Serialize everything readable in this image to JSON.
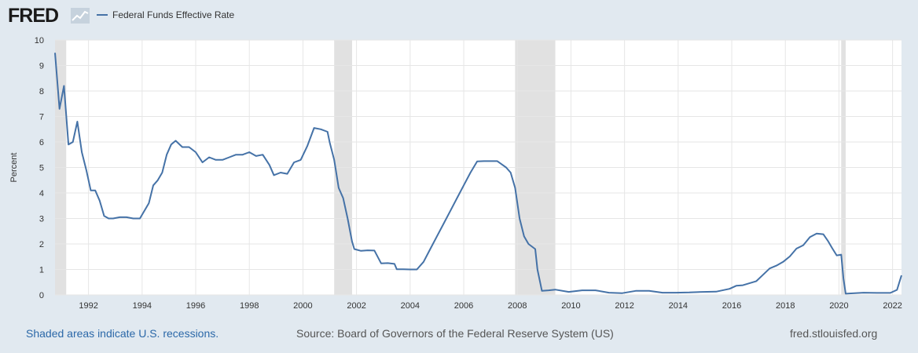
{
  "header": {
    "logo_text": "FRED",
    "legend_label": "Federal Funds Effective Rate"
  },
  "footer": {
    "recession_note": "Shaded areas indicate U.S. recessions.",
    "source": "Source: Board of Governors of the Federal Reserve System (US)",
    "site": "fred.stlouisfed.org"
  },
  "colors": {
    "background": "#e1e9f0",
    "plot_background": "#ffffff",
    "series_line": "#4572a7",
    "recession_shade": "#e1e1e1",
    "gridline": "#e6e6e6",
    "recession_note_text": "#2b68a8"
  },
  "icons": {
    "logo_icon": "line-chart-icon"
  },
  "chart_data": {
    "type": "line",
    "xlabel": "",
    "ylabel": "Percent",
    "ylim": [
      0,
      10
    ],
    "xlim": [
      "1990-10",
      "2022-05"
    ],
    "yticks": [
      "0",
      "1",
      "2",
      "3",
      "4",
      "5",
      "6",
      "7",
      "8",
      "9",
      "10"
    ],
    "xticks": [
      "1992",
      "1994",
      "1996",
      "1998",
      "2000",
      "2002",
      "2004",
      "2006",
      "2008",
      "2010",
      "2012",
      "2014",
      "2016",
      "2018",
      "2020",
      "2022"
    ],
    "grid": true,
    "legend": "top-left",
    "recessions": [
      [
        "1990-10",
        "1991-03"
      ],
      [
        "2001-03",
        "2001-11"
      ],
      [
        "2007-12",
        "2009-06"
      ],
      [
        "2020-02",
        "2020-04"
      ]
    ],
    "series": [
      {
        "name": "Federal Funds Effective Rate",
        "x": [
          "1990-10",
          "1990-12",
          "1991-02",
          "1991-04",
          "1991-06",
          "1991-08",
          "1991-10",
          "1991-12",
          "1992-02",
          "1992-04",
          "1992-06",
          "1992-08",
          "1992-10",
          "1992-12",
          "1993-03",
          "1993-06",
          "1993-09",
          "1993-12",
          "1994-02",
          "1994-04",
          "1994-06",
          "1994-08",
          "1994-10",
          "1994-12",
          "1995-02",
          "1995-04",
          "1995-07",
          "1995-10",
          "1996-01",
          "1996-04",
          "1996-07",
          "1996-10",
          "1997-01",
          "1997-04",
          "1997-07",
          "1997-10",
          "1998-01",
          "1998-04",
          "1998-07",
          "1998-10",
          "1998-12",
          "1999-03",
          "1999-06",
          "1999-09",
          "1999-12",
          "2000-03",
          "2000-06",
          "2000-09",
          "2000-12",
          "2001-01",
          "2001-03",
          "2001-05",
          "2001-07",
          "2001-09",
          "2001-11",
          "2001-12",
          "2002-03",
          "2002-06",
          "2002-09",
          "2002-12",
          "2003-03",
          "2003-06",
          "2003-07",
          "2003-10",
          "2004-01",
          "2004-04",
          "2004-07",
          "2004-10",
          "2005-01",
          "2005-04",
          "2005-07",
          "2005-10",
          "2006-01",
          "2006-04",
          "2006-07",
          "2006-10",
          "2007-01",
          "2007-04",
          "2007-08",
          "2007-10",
          "2007-12",
          "2008-02",
          "2008-04",
          "2008-06",
          "2008-09",
          "2008-10",
          "2008-12",
          "2009-03",
          "2009-06",
          "2009-12",
          "2010-06",
          "2010-12",
          "2011-06",
          "2011-12",
          "2012-06",
          "2012-12",
          "2013-06",
          "2013-12",
          "2014-06",
          "2014-12",
          "2015-06",
          "2015-12",
          "2016-03",
          "2016-06",
          "2016-12",
          "2017-03",
          "2017-06",
          "2017-09",
          "2017-12",
          "2018-03",
          "2018-06",
          "2018-09",
          "2018-12",
          "2019-03",
          "2019-06",
          "2019-08",
          "2019-10",
          "2019-12",
          "2020-02",
          "2020-03",
          "2020-04",
          "2020-12",
          "2021-06",
          "2021-12",
          "2022-03",
          "2022-05"
        ],
        "values": [
          9.5,
          7.3,
          8.2,
          5.9,
          6.0,
          6.8,
          5.6,
          4.9,
          4.1,
          4.1,
          3.7,
          3.1,
          3.0,
          3.0,
          3.05,
          3.05,
          3.0,
          3.0,
          3.3,
          3.6,
          4.3,
          4.5,
          4.8,
          5.5,
          5.9,
          6.05,
          5.8,
          5.8,
          5.6,
          5.2,
          5.4,
          5.3,
          5.3,
          5.4,
          5.5,
          5.5,
          5.6,
          5.45,
          5.5,
          5.1,
          4.7,
          4.8,
          4.75,
          5.2,
          5.3,
          5.85,
          6.55,
          6.5,
          6.4,
          5.98,
          5.3,
          4.2,
          3.8,
          3.0,
          2.1,
          1.8,
          1.73,
          1.75,
          1.74,
          1.24,
          1.25,
          1.22,
          1.01,
          1.01,
          1.0,
          1.0,
          1.3,
          1.8,
          2.3,
          2.8,
          3.3,
          3.8,
          4.3,
          4.8,
          5.24,
          5.25,
          5.25,
          5.25,
          5.0,
          4.8,
          4.2,
          3.0,
          2.3,
          2.0,
          1.8,
          1.0,
          0.16,
          0.18,
          0.21,
          0.12,
          0.18,
          0.18,
          0.09,
          0.07,
          0.16,
          0.16,
          0.09,
          0.09,
          0.1,
          0.12,
          0.13,
          0.24,
          0.36,
          0.38,
          0.54,
          0.79,
          1.04,
          1.15,
          1.3,
          1.51,
          1.82,
          1.95,
          2.27,
          2.41,
          2.38,
          2.13,
          1.83,
          1.55,
          1.58,
          0.65,
          0.05,
          0.09,
          0.08,
          0.08,
          0.2,
          0.77
        ]
      }
    ]
  }
}
